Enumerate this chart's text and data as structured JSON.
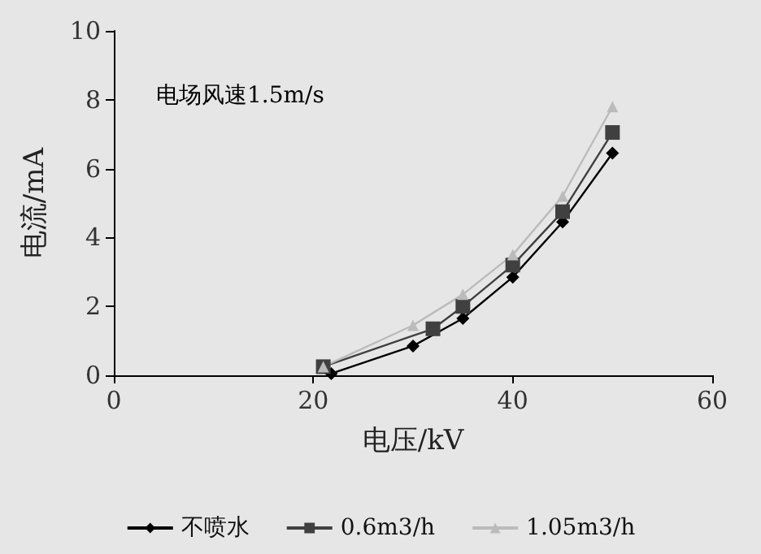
{
  "chart_data": {
    "type": "line",
    "xlabel": "电压/kV",
    "ylabel": "电流/mA",
    "annotations": [
      "电场风速1.5m/s"
    ],
    "xlim": [
      0,
      60
    ],
    "xticks": [
      0,
      20,
      40,
      60
    ],
    "ylim": [
      0,
      10
    ],
    "yticks": [
      0,
      2,
      4,
      6,
      8,
      10
    ],
    "grid": false,
    "legend": "bottom",
    "line_style": "solid",
    "series": [
      {
        "name": "不喷水",
        "color": "#000000",
        "marker": "diamond",
        "x": [
          21.8,
          30,
          35,
          40,
          45,
          50
        ],
        "values": [
          0.05,
          0.85,
          1.65,
          2.85,
          4.45,
          6.45
        ]
      },
      {
        "name": "0.6m3/h",
        "color": "#404040",
        "marker": "square",
        "x": [
          21,
          32,
          35,
          40,
          45,
          50
        ],
        "values": [
          0.25,
          1.35,
          2.0,
          3.2,
          4.75,
          7.05
        ]
      },
      {
        "name": "1.05m3/h",
        "color": "#bbbbbb",
        "marker": "triangle",
        "x": [
          21,
          30,
          35,
          40,
          45,
          50
        ],
        "values": [
          0.25,
          1.45,
          2.35,
          3.5,
          5.2,
          7.8
        ]
      }
    ]
  }
}
